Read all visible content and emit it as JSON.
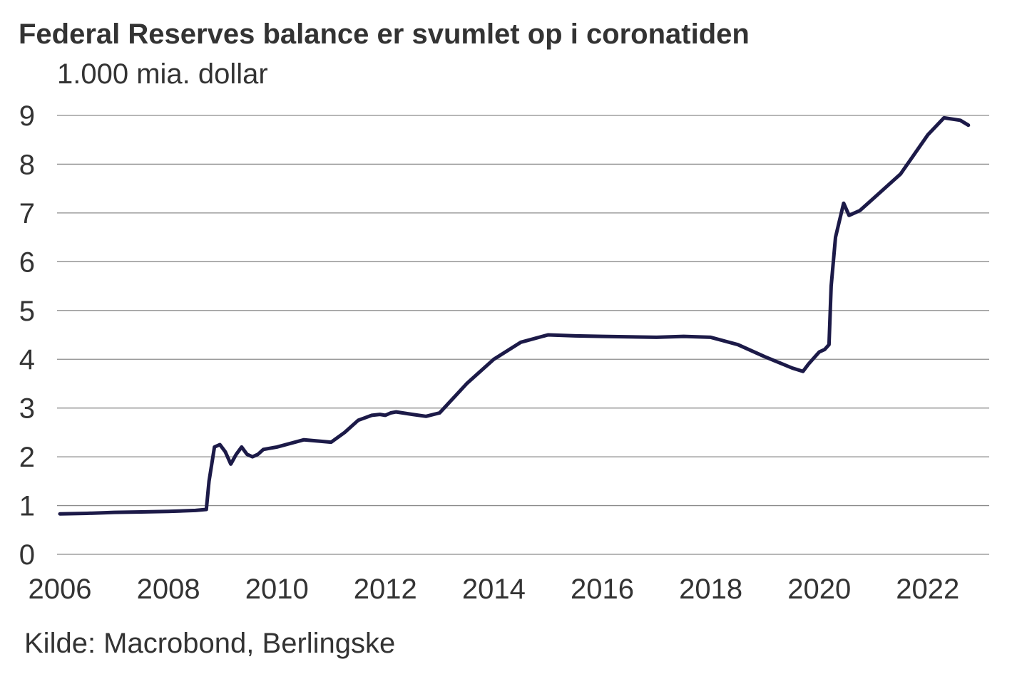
{
  "chart_data": {
    "type": "line",
    "title": "Federal Reserves balance er svumlet op i coronatiden",
    "ylabel": "1.000 mia. dollar",
    "xlabel": "",
    "source": "Kilde: Macrobond, Berlingske",
    "x_ticks": [
      "2006",
      "2008",
      "2010",
      "2012",
      "2014",
      "2016",
      "2018",
      "2020",
      "2022"
    ],
    "x_tick_values": [
      2006,
      2008,
      2010,
      2012,
      2014,
      2016,
      2018,
      2020,
      2022
    ],
    "y_ticks": [
      "0",
      "1",
      "2",
      "3",
      "4",
      "5",
      "6",
      "7",
      "8",
      "9"
    ],
    "y_tick_values": [
      0,
      1,
      2,
      3,
      4,
      5,
      6,
      7,
      8,
      9
    ],
    "xlim": [
      2006,
      2023.1
    ],
    "ylim": [
      0,
      9
    ],
    "grid": true,
    "line_color": "#1c1a48",
    "series": [
      {
        "name": "Federal Reserves balance",
        "x": [
          2006.0,
          2006.5,
          2007.0,
          2007.5,
          2008.0,
          2008.5,
          2008.7,
          2008.75,
          2008.85,
          2008.95,
          2009.05,
          2009.15,
          2009.25,
          2009.35,
          2009.45,
          2009.55,
          2009.65,
          2009.75,
          2010.0,
          2010.5,
          2011.0,
          2011.25,
          2011.5,
          2011.75,
          2011.9,
          2012.0,
          2012.1,
          2012.2,
          2012.5,
          2012.75,
          2013.0,
          2013.5,
          2014.0,
          2014.5,
          2015.0,
          2015.5,
          2016.0,
          2016.5,
          2017.0,
          2017.5,
          2018.0,
          2018.5,
          2019.0,
          2019.5,
          2019.7,
          2019.8,
          2020.0,
          2020.1,
          2020.18,
          2020.22,
          2020.3,
          2020.45,
          2020.55,
          2020.75,
          2021.0,
          2021.5,
          2022.0,
          2022.3,
          2022.6,
          2022.75
        ],
        "values": [
          0.83,
          0.84,
          0.86,
          0.87,
          0.88,
          0.9,
          0.92,
          1.5,
          2.2,
          2.25,
          2.1,
          1.85,
          2.05,
          2.2,
          2.05,
          2.0,
          2.05,
          2.15,
          2.2,
          2.35,
          2.3,
          2.5,
          2.75,
          2.85,
          2.87,
          2.85,
          2.9,
          2.92,
          2.87,
          2.83,
          2.9,
          3.5,
          4.0,
          4.35,
          4.5,
          4.48,
          4.47,
          4.46,
          4.45,
          4.47,
          4.45,
          4.3,
          4.05,
          3.82,
          3.75,
          3.9,
          4.15,
          4.2,
          4.3,
          5.5,
          6.5,
          7.2,
          6.95,
          7.05,
          7.3,
          7.8,
          8.6,
          8.95,
          8.9,
          8.8
        ]
      }
    ]
  }
}
